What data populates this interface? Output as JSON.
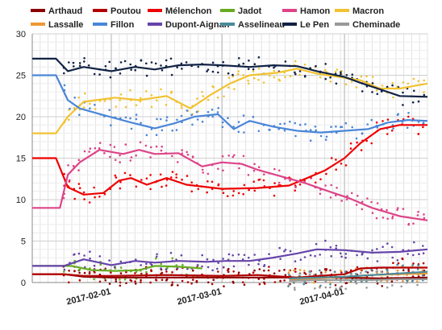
{
  "chart_data": {
    "type": "line",
    "title": "",
    "xlabel": "",
    "ylabel": "",
    "x_range": [
      "2017-01-12",
      "2017-04-22"
    ],
    "ylim": [
      0,
      30
    ],
    "y_ticks": [
      0,
      5,
      10,
      15,
      20,
      25,
      30
    ],
    "x_ticks": [
      "2017-02-01",
      "2017-03-01",
      "2017-04-01"
    ],
    "grid": true,
    "legend_position": "top",
    "show_poll_points": true,
    "series": [
      {
        "name": "Arthaud",
        "color": "#8b0000",
        "points": [
          [
            "2017-01-12",
            1
          ],
          [
            "2017-01-20",
            1
          ],
          [
            "2017-01-25",
            0.7
          ],
          [
            "2017-02-01",
            0.6
          ],
          [
            "2017-02-10",
            0.6
          ],
          [
            "2017-02-20",
            0.6
          ],
          [
            "2017-03-01",
            0.6
          ],
          [
            "2017-03-10",
            0.6
          ],
          [
            "2017-03-20",
            0.6
          ],
          [
            "2017-04-01",
            0.6
          ],
          [
            "2017-04-10",
            0.5
          ],
          [
            "2017-04-22",
            0.6
          ]
        ]
      },
      {
        "name": "Poutou",
        "color": "#b30000",
        "points": [
          [
            "2017-01-12",
            1
          ],
          [
            "2017-01-20",
            1
          ],
          [
            "2017-01-25",
            0.8
          ],
          [
            "2017-02-01",
            0.8
          ],
          [
            "2017-02-15",
            0.9
          ],
          [
            "2017-03-01",
            0.8
          ],
          [
            "2017-03-10",
            0.9
          ],
          [
            "2017-03-20",
            0.6
          ],
          [
            "2017-04-01",
            1.0
          ],
          [
            "2017-04-05",
            1.7
          ],
          [
            "2017-04-10",
            1.8
          ],
          [
            "2017-04-22",
            1.8
          ]
        ]
      },
      {
        "name": "Mélenchon",
        "color": "#ee0000",
        "points": [
          [
            "2017-01-12",
            15
          ],
          [
            "2017-01-18",
            15
          ],
          [
            "2017-01-21",
            11.5
          ],
          [
            "2017-01-25",
            10.6
          ],
          [
            "2017-01-30",
            10.8
          ],
          [
            "2017-02-03",
            12.3
          ],
          [
            "2017-02-06",
            12.6
          ],
          [
            "2017-02-10",
            11.8
          ],
          [
            "2017-02-15",
            12.6
          ],
          [
            "2017-02-20",
            11.8
          ],
          [
            "2017-03-01",
            11.3
          ],
          [
            "2017-03-10",
            11.4
          ],
          [
            "2017-03-18",
            11.7
          ],
          [
            "2017-03-22",
            12.5
          ],
          [
            "2017-03-27",
            13.5
          ],
          [
            "2017-04-01",
            15
          ],
          [
            "2017-04-05",
            16.8
          ],
          [
            "2017-04-10",
            18.5
          ],
          [
            "2017-04-15",
            19.0
          ],
          [
            "2017-04-22",
            19.0
          ]
        ]
      },
      {
        "name": "Jadot",
        "color": "#66aa22",
        "points": [
          [
            "2017-01-12",
            2
          ],
          [
            "2017-01-22",
            2
          ],
          [
            "2017-01-27",
            1.5
          ],
          [
            "2017-02-02",
            1.4
          ],
          [
            "2017-02-08",
            1.5
          ],
          [
            "2017-02-12",
            2.0
          ],
          [
            "2017-02-18",
            1.9
          ],
          [
            "2017-02-24",
            1.7
          ]
        ]
      },
      {
        "name": "Hamon",
        "color": "#dd4488",
        "points": [
          [
            "2017-01-12",
            9
          ],
          [
            "2017-01-19",
            9
          ],
          [
            "2017-01-21",
            13
          ],
          [
            "2017-01-24",
            14.5
          ],
          [
            "2017-01-29",
            16
          ],
          [
            "2017-02-04",
            15.5
          ],
          [
            "2017-02-08",
            16
          ],
          [
            "2017-02-12",
            15.5
          ],
          [
            "2017-02-18",
            15.6
          ],
          [
            "2017-02-24",
            14
          ],
          [
            "2017-03-01",
            14.5
          ],
          [
            "2017-03-06",
            14.3
          ],
          [
            "2017-03-10",
            13.6
          ],
          [
            "2017-03-16",
            12.8
          ],
          [
            "2017-03-22",
            12
          ],
          [
            "2017-03-28",
            11
          ],
          [
            "2017-04-02",
            10.2
          ],
          [
            "2017-04-08",
            9.0
          ],
          [
            "2017-04-15",
            8.0
          ],
          [
            "2017-04-22",
            7.5
          ]
        ]
      },
      {
        "name": "Macron",
        "color": "#f2c230",
        "points": [
          [
            "2017-01-12",
            18
          ],
          [
            "2017-01-18",
            18
          ],
          [
            "2017-01-21",
            20
          ],
          [
            "2017-01-25",
            21.8
          ],
          [
            "2017-02-02",
            22.3
          ],
          [
            "2017-02-08",
            22
          ],
          [
            "2017-02-15",
            22.5
          ],
          [
            "2017-02-21",
            21
          ],
          [
            "2017-02-26",
            22.6
          ],
          [
            "2017-03-03",
            24
          ],
          [
            "2017-03-08",
            25
          ],
          [
            "2017-03-15",
            25.3
          ],
          [
            "2017-03-20",
            25.8
          ],
          [
            "2017-03-25",
            25.2
          ],
          [
            "2017-04-01",
            24.7
          ],
          [
            "2017-04-05",
            24.4
          ],
          [
            "2017-04-10",
            23.4
          ],
          [
            "2017-04-15",
            23.4
          ],
          [
            "2017-04-22",
            24.0
          ]
        ]
      },
      {
        "name": "Lassalle",
        "color": "#ee9933",
        "points": [
          [
            "2017-03-18",
            0.4
          ],
          [
            "2017-03-25",
            0.5
          ],
          [
            "2017-04-01",
            0.7
          ],
          [
            "2017-04-08",
            0.9
          ],
          [
            "2017-04-15",
            1.0
          ],
          [
            "2017-04-22",
            1.1
          ]
        ]
      },
      {
        "name": "Fillon",
        "color": "#4a86d8",
        "points": [
          [
            "2017-01-12",
            25
          ],
          [
            "2017-01-18",
            25
          ],
          [
            "2017-01-21",
            22
          ],
          [
            "2017-01-24",
            21
          ],
          [
            "2017-01-30",
            20.2
          ],
          [
            "2017-02-06",
            19.3
          ],
          [
            "2017-02-12",
            18.6
          ],
          [
            "2017-02-17",
            19.2
          ],
          [
            "2017-02-22",
            20
          ],
          [
            "2017-02-28",
            20.3
          ],
          [
            "2017-03-04",
            18.5
          ],
          [
            "2017-03-08",
            19.5
          ],
          [
            "2017-03-14",
            18.8
          ],
          [
            "2017-03-20",
            18.3
          ],
          [
            "2017-03-26",
            18.1
          ],
          [
            "2017-04-01",
            18.3
          ],
          [
            "2017-04-07",
            18.5
          ],
          [
            "2017-04-12",
            19.3
          ],
          [
            "2017-04-17",
            19.6
          ],
          [
            "2017-04-22",
            19.5
          ]
        ]
      },
      {
        "name": "Dupont-Aignan",
        "color": "#6644aa",
        "points": [
          [
            "2017-01-12",
            2
          ],
          [
            "2017-01-20",
            2
          ],
          [
            "2017-01-25",
            2.8
          ],
          [
            "2017-02-01",
            2.1
          ],
          [
            "2017-02-07",
            2.6
          ],
          [
            "2017-02-12",
            2.4
          ],
          [
            "2017-02-18",
            2.6
          ],
          [
            "2017-02-25",
            2.5
          ],
          [
            "2017-03-02",
            2.6
          ],
          [
            "2017-03-08",
            2.6
          ],
          [
            "2017-03-14",
            3.0
          ],
          [
            "2017-03-20",
            3.5
          ],
          [
            "2017-03-25",
            4.0
          ],
          [
            "2017-04-01",
            3.9
          ],
          [
            "2017-04-08",
            3.6
          ],
          [
            "2017-04-15",
            3.7
          ],
          [
            "2017-04-22",
            4.0
          ]
        ]
      },
      {
        "name": "Asselineau",
        "color": "#4a8a9a",
        "points": [
          [
            "2017-03-18",
            0.5
          ],
          [
            "2017-03-25",
            0.6
          ],
          [
            "2017-04-01",
            0.7
          ],
          [
            "2017-04-08",
            0.9
          ],
          [
            "2017-04-15",
            1.1
          ],
          [
            "2017-04-22",
            1.3
          ]
        ]
      },
      {
        "name": "Le Pen",
        "color": "#112244",
        "points": [
          [
            "2017-01-12",
            27
          ],
          [
            "2017-01-18",
            27
          ],
          [
            "2017-01-21",
            25.5
          ],
          [
            "2017-01-25",
            26
          ],
          [
            "2017-02-01",
            25.5
          ],
          [
            "2017-02-07",
            26
          ],
          [
            "2017-02-12",
            25.7
          ],
          [
            "2017-02-18",
            26.2
          ],
          [
            "2017-02-24",
            26.3
          ],
          [
            "2017-03-01",
            26.2
          ],
          [
            "2017-03-08",
            26
          ],
          [
            "2017-03-14",
            26.2
          ],
          [
            "2017-03-20",
            26.1
          ],
          [
            "2017-03-25",
            25.5
          ],
          [
            "2017-04-01",
            24.8
          ],
          [
            "2017-04-05",
            24.1
          ],
          [
            "2017-04-10",
            23.3
          ],
          [
            "2017-04-15",
            22.5
          ],
          [
            "2017-04-22",
            22.4
          ]
        ]
      },
      {
        "name": "Cheminade",
        "color": "#999999",
        "points": [
          [
            "2017-03-18",
            0.2
          ],
          [
            "2017-03-25",
            0.3
          ],
          [
            "2017-04-01",
            0.3
          ],
          [
            "2017-04-08",
            0.3
          ],
          [
            "2017-04-15",
            0.4
          ],
          [
            "2017-04-22",
            0.4
          ]
        ]
      }
    ]
  }
}
